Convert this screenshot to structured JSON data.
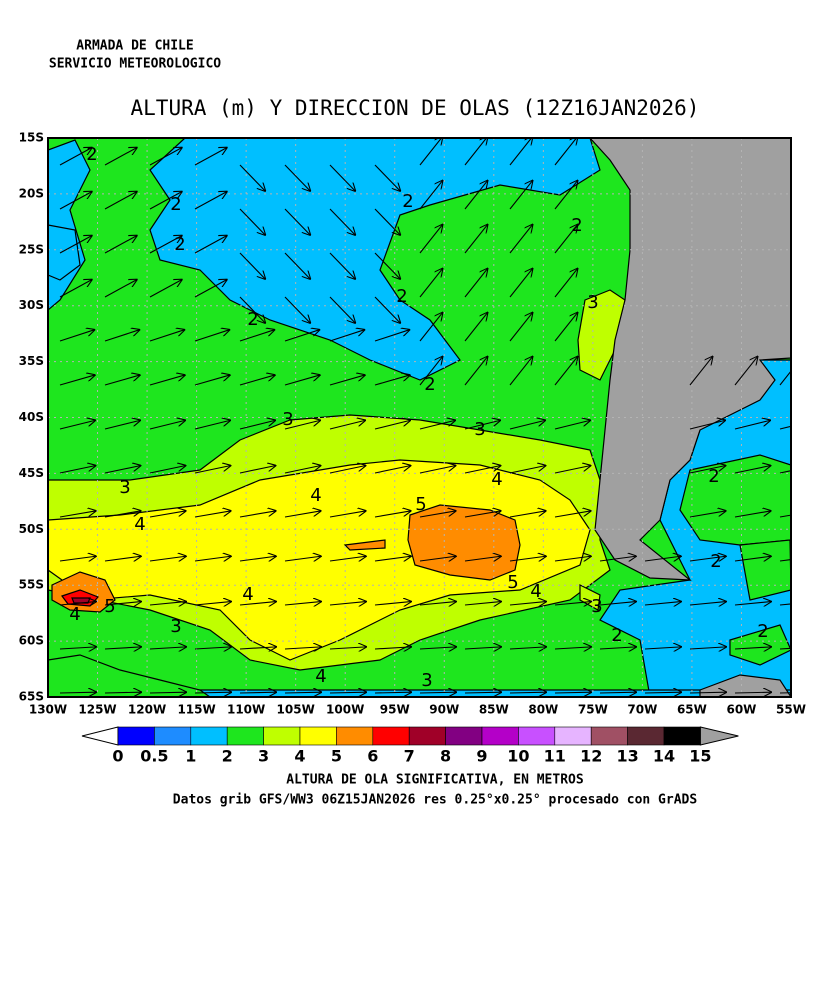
{
  "header": [
    "ARMADA DE CHILE",
    "SERVICIO METEOROLOGICO"
  ],
  "title": "ALTURA (m) Y DIRECCION DE OLAS (12Z16JAN2026)",
  "lat_labels": [
    "15S",
    "20S",
    "25S",
    "30S",
    "35S",
    "40S",
    "45S",
    "50S",
    "55S",
    "60S",
    "65S"
  ],
  "lon_labels": [
    "130W",
    "125W",
    "120W",
    "115W",
    "110W",
    "105W",
    "100W",
    "95W",
    "90W",
    "85W",
    "80W",
    "75W",
    "70W",
    "65W",
    "60W",
    "55W"
  ],
  "contour_labels": [
    "2",
    "2",
    "2",
    "2",
    "2",
    "2",
    "2",
    "2",
    "2",
    "2",
    "2",
    "2",
    "3",
    "3",
    "3",
    "3",
    "3",
    "3",
    "3",
    "4",
    "4",
    "4",
    "4",
    "4",
    "4",
    "4",
    "5",
    "5",
    "5"
  ],
  "colorbar": {
    "levels": [
      0,
      0.5,
      1,
      2,
      3,
      4,
      5,
      6,
      7,
      8,
      9,
      10,
      11,
      12,
      13,
      14,
      15
    ],
    "colors": [
      "#ffffff",
      "#0000ff",
      "#1e8cff",
      "#00bfff",
      "#1ee61e",
      "#bfff00",
      "#ffff00",
      "#ff8c00",
      "#ff0000",
      "#a00028",
      "#820082",
      "#b400c8",
      "#c850ff",
      "#e6b4ff",
      "#a05064",
      "#5a2832",
      "#000000",
      "#a0a0a0"
    ]
  },
  "colorbar_label": "ALTURA DE OLA SIGNIFICATIVA, EN METROS",
  "footer": "Datos grib GFS/WW3 06Z15JAN2026 res 0.25°x0.25° procesado con GrADS"
}
